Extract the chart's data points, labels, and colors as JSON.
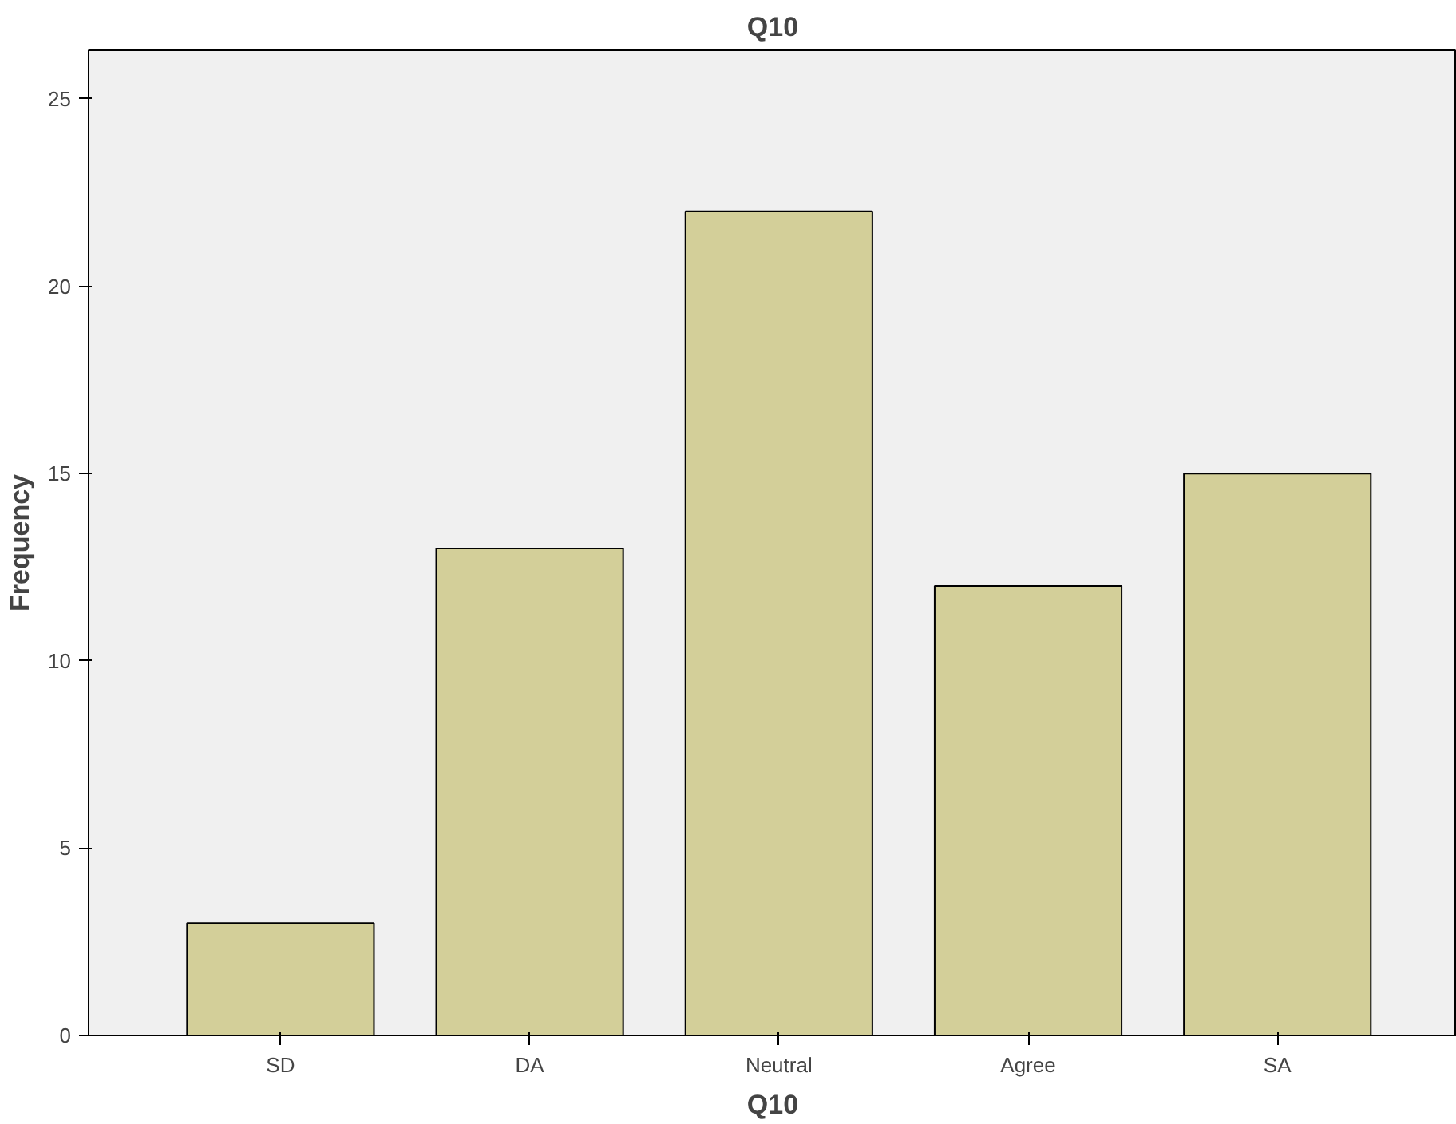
{
  "chart_data": {
    "type": "bar",
    "title": "Q10",
    "xlabel": "Q10",
    "ylabel": "Frequency",
    "categories": [
      "SD",
      "DA",
      "Neutral",
      "Agree",
      "SA"
    ],
    "values": [
      3,
      13,
      22,
      12,
      15
    ],
    "color": "#d3cf99",
    "ylim": [
      0,
      26.3
    ],
    "yticks": [
      0,
      5,
      10,
      15,
      20,
      25
    ],
    "grid": false
  }
}
